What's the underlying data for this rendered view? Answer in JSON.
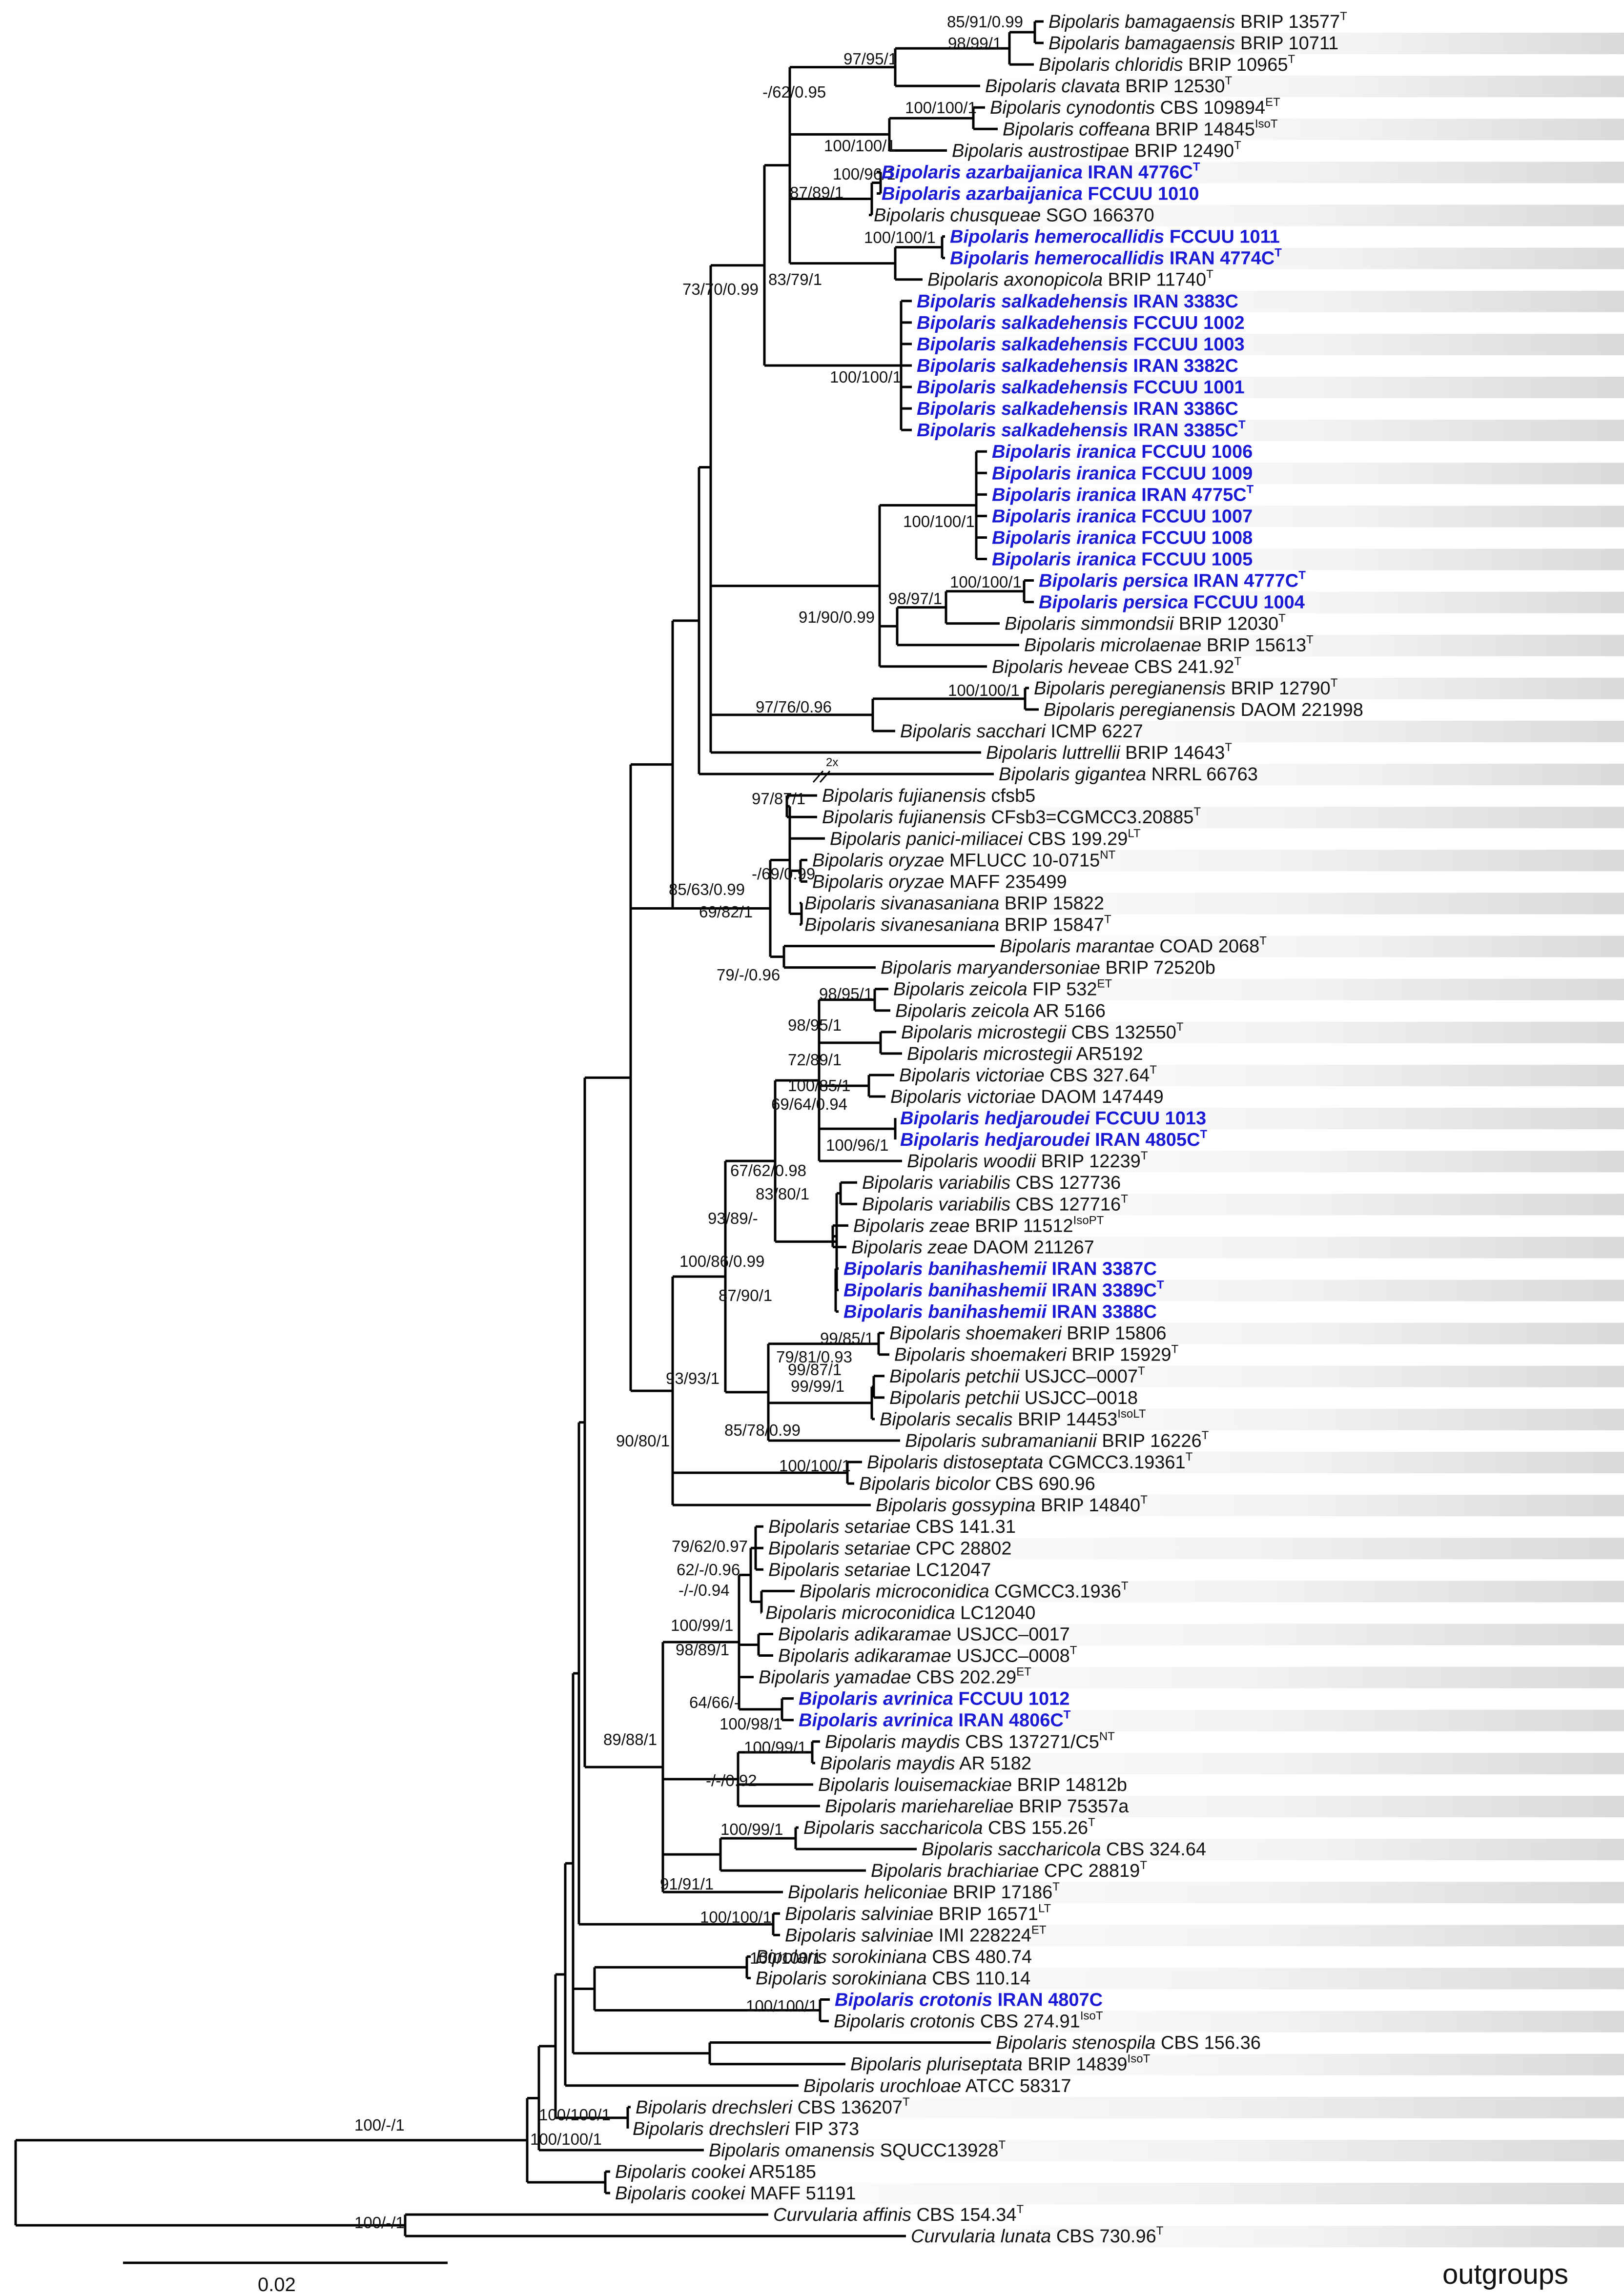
{
  "figure": {
    "outgroups_label": "outgroups",
    "scale_label": "0.02",
    "break_label": "2x"
  },
  "taxa": [
    {
      "sp": "Bipolaris bamagaensis",
      "st": "BRIP 13577",
      "sup": "T",
      "hl": false
    },
    {
      "sp": "Bipolaris bamagaensis",
      "st": "BRIP 10711",
      "sup": "",
      "hl": false
    },
    {
      "sp": "Bipolaris chloridis",
      "st": "BRIP 10965",
      "sup": "T",
      "hl": false
    },
    {
      "sp": "Bipolaris clavata",
      "st": "BRIP 12530",
      "sup": "T",
      "hl": false
    },
    {
      "sp": "Bipolaris cynodontis",
      "st": "CBS 109894",
      "sup": "ET",
      "hl": false
    },
    {
      "sp": "Bipolaris coffeana",
      "st": "BRIP 14845",
      "sup": "IsoT",
      "hl": false
    },
    {
      "sp": "Bipolaris austrostipae",
      "st": "BRIP 12490",
      "sup": "T",
      "hl": false
    },
    {
      "sp": "Bipolaris azarbaijanica",
      "st": "IRAN 4776C",
      "sup": "T",
      "hl": true
    },
    {
      "sp": "Bipolaris azarbaijanica",
      "st": "FCCUU 1010",
      "sup": "",
      "hl": true
    },
    {
      "sp": "Bipolaris chusqueae",
      "st": "SGO 166370",
      "sup": "",
      "hl": false
    },
    {
      "sp": "Bipolaris hemerocallidis",
      "st": "FCCUU 1011",
      "sup": "",
      "hl": true
    },
    {
      "sp": "Bipolaris hemerocallidis",
      "st": "IRAN 4774C",
      "sup": "T",
      "hl": true
    },
    {
      "sp": "Bipolaris axonopicola",
      "st": "BRIP 11740",
      "sup": "T",
      "hl": false
    },
    {
      "sp": "Bipolaris salkadehensis",
      "st": "IRAN 3383C",
      "sup": "",
      "hl": true
    },
    {
      "sp": "Bipolaris salkadehensis",
      "st": "FCCUU 1002",
      "sup": "",
      "hl": true
    },
    {
      "sp": "Bipolaris salkadehensis",
      "st": "FCCUU 1003",
      "sup": "",
      "hl": true
    },
    {
      "sp": "Bipolaris salkadehensis",
      "st": "IRAN 3382C",
      "sup": "",
      "hl": true
    },
    {
      "sp": "Bipolaris salkadehensis",
      "st": "FCCUU 1001",
      "sup": "",
      "hl": true
    },
    {
      "sp": "Bipolaris salkadehensis",
      "st": "IRAN 3386C",
      "sup": "",
      "hl": true
    },
    {
      "sp": "Bipolaris salkadehensis",
      "st": "IRAN 3385C",
      "sup": "T",
      "hl": true
    },
    {
      "sp": "Bipolaris iranica",
      "st": "FCCUU 1006",
      "sup": "",
      "hl": true
    },
    {
      "sp": "Bipolaris iranica",
      "st": "FCCUU 1009",
      "sup": "",
      "hl": true
    },
    {
      "sp": "Bipolaris iranica",
      "st": "IRAN 4775C",
      "sup": "T",
      "hl": true
    },
    {
      "sp": "Bipolaris iranica",
      "st": "FCCUU 1007",
      "sup": "",
      "hl": true
    },
    {
      "sp": "Bipolaris iranica",
      "st": "FCCUU 1008",
      "sup": "",
      "hl": true
    },
    {
      "sp": "Bipolaris iranica",
      "st": "FCCUU 1005",
      "sup": "",
      "hl": true
    },
    {
      "sp": "Bipolaris persica",
      "st": "IRAN 4777C",
      "sup": "T",
      "hl": true
    },
    {
      "sp": "Bipolaris persica",
      "st": "FCCUU 1004",
      "sup": "",
      "hl": true
    },
    {
      "sp": "Bipolaris simmondsii",
      "st": "BRIP 12030",
      "sup": "T",
      "hl": false
    },
    {
      "sp": "Bipolaris microlaenae",
      "st": "BRIP 15613",
      "sup": "T",
      "hl": false
    },
    {
      "sp": "Bipolaris heveae",
      "st": "CBS 241.92",
      "sup": "T",
      "hl": false
    },
    {
      "sp": "Bipolaris peregianensis",
      "st": "BRIP 12790",
      "sup": "T",
      "hl": false
    },
    {
      "sp": "Bipolaris peregianensis",
      "st": "DAOM 221998",
      "sup": "",
      "hl": false
    },
    {
      "sp": "Bipolaris sacchari",
      "st": "ICMP 6227",
      "sup": "",
      "hl": false
    },
    {
      "sp": "Bipolaris luttrellii",
      "st": "BRIP 14643",
      "sup": "T",
      "hl": false
    },
    {
      "sp": "Bipolaris gigantea",
      "st": "NRRL 66763",
      "sup": "",
      "hl": false
    },
    {
      "sp": "Bipolaris fujianensis",
      "st": "cfsb5",
      "sup": "",
      "hl": false
    },
    {
      "sp": "Bipolaris fujianensis",
      "st": "CFsb3=CGMCC3.20885",
      "sup": "T",
      "hl": false
    },
    {
      "sp": "Bipolaris panici-miliacei",
      "st": "CBS 199.29",
      "sup": "LT",
      "hl": false
    },
    {
      "sp": "Bipolaris oryzae",
      "st": "MFLUCC 10-0715",
      "sup": "NT",
      "hl": false
    },
    {
      "sp": "Bipolaris oryzae",
      "st": "MAFF 235499",
      "sup": "",
      "hl": false
    },
    {
      "sp": "Bipolaris sivanasaniana",
      "st": "BRIP 15822",
      "sup": "",
      "hl": false
    },
    {
      "sp": "Bipolaris sivanesaniana",
      "st": "BRIP 15847",
      "sup": "T",
      "hl": false
    },
    {
      "sp": "Bipolaris marantae",
      "st": "COAD 2068",
      "sup": "T",
      "hl": false
    },
    {
      "sp": "Bipolaris maryandersoniae",
      "st": "BRIP 72520b",
      "sup": "",
      "hl": false
    },
    {
      "sp": "Bipolaris zeicola",
      "st": "FIP 532",
      "sup": "ET",
      "hl": false
    },
    {
      "sp": "Bipolaris zeicola",
      "st": "AR 5166",
      "sup": "",
      "hl": false
    },
    {
      "sp": "Bipolaris microstegii",
      "st": "CBS 132550",
      "sup": "T",
      "hl": false
    },
    {
      "sp": "Bipolaris microstegii",
      "st": "AR5192",
      "sup": "",
      "hl": false
    },
    {
      "sp": "Bipolaris victoriae",
      "st": "CBS 327.64",
      "sup": "T",
      "hl": false
    },
    {
      "sp": "Bipolaris victoriae",
      "st": "DAOM 147449",
      "sup": "",
      "hl": false
    },
    {
      "sp": "Bipolaris hedjaroudei",
      "st": "FCCUU 1013",
      "sup": "",
      "hl": true
    },
    {
      "sp": "Bipolaris hedjaroudei",
      "st": "IRAN 4805C",
      "sup": "T",
      "hl": true
    },
    {
      "sp": "Bipolaris woodii",
      "st": "BRIP 12239",
      "sup": "T",
      "hl": false
    },
    {
      "sp": "Bipolaris variabilis",
      "st": "CBS 127736",
      "sup": "",
      "hl": false
    },
    {
      "sp": "Bipolaris variabilis",
      "st": "CBS 127716",
      "sup": "T",
      "hl": false
    },
    {
      "sp": "Bipolaris zeae",
      "st": "BRIP 11512",
      "sup": "IsoPT",
      "hl": false
    },
    {
      "sp": "Bipolaris zeae",
      "st": "DAOM 211267",
      "sup": "",
      "hl": false
    },
    {
      "sp": "Bipolaris banihashemii",
      "st": "IRAN 3387C",
      "sup": "",
      "hl": true
    },
    {
      "sp": "Bipolaris banihashemii",
      "st": "IRAN 3389C",
      "sup": "T",
      "hl": true
    },
    {
      "sp": "Bipolaris banihashemii",
      "st": "IRAN 3388C",
      "sup": "",
      "hl": true
    },
    {
      "sp": "Bipolaris shoemakeri",
      "st": "BRIP 15806",
      "sup": "",
      "hl": false
    },
    {
      "sp": "Bipolaris shoemakeri",
      "st": "BRIP 15929",
      "sup": "T",
      "hl": false
    },
    {
      "sp": "Bipolaris petchii",
      "st": "USJCC–0007",
      "sup": "T",
      "hl": false
    },
    {
      "sp": "Bipolaris petchii",
      "st": "USJCC–0018",
      "sup": "",
      "hl": false
    },
    {
      "sp": "Bipolaris secalis",
      "st": "BRIP 14453",
      "sup": "IsoLT",
      "hl": false
    },
    {
      "sp": "Bipolaris subramanianii",
      "st": "BRIP 16226",
      "sup": "T",
      "hl": false
    },
    {
      "sp": "Bipolaris distoseptata",
      "st": "CGMCC3.19361",
      "sup": "T",
      "hl": false
    },
    {
      "sp": "Bipolaris bicolor",
      "st": "CBS 690.96",
      "sup": "",
      "hl": false
    },
    {
      "sp": "Bipolaris gossypina",
      "st": "BRIP 14840",
      "sup": "T",
      "hl": false
    },
    {
      "sp": "Bipolaris setariae",
      "st": "CBS 141.31",
      "sup": "",
      "hl": false
    },
    {
      "sp": "Bipolaris setariae",
      "st": "CPC 28802",
      "sup": "",
      "hl": false
    },
    {
      "sp": "Bipolaris setariae",
      "st": "LC12047",
      "sup": "",
      "hl": false
    },
    {
      "sp": "Bipolaris microconidica",
      "st": "CGMCC3.1936",
      "sup": "T",
      "hl": false
    },
    {
      "sp": "Bipolaris microconidica",
      "st": "LC12040",
      "sup": "",
      "hl": false
    },
    {
      "sp": "Bipolaris adikaramae",
      "st": "USJCC–0017",
      "sup": "",
      "hl": false
    },
    {
      "sp": "Bipolaris adikaramae",
      "st": "USJCC–0008",
      "sup": "T",
      "hl": false
    },
    {
      "sp": "Bipolaris yamadae",
      "st": "CBS 202.29",
      "sup": "ET",
      "hl": false
    },
    {
      "sp": "Bipolaris avrinica",
      "st": "FCCUU 1012",
      "sup": "",
      "hl": true
    },
    {
      "sp": "Bipolaris avrinica",
      "st": "IRAN 4806C",
      "sup": "T",
      "hl": true
    },
    {
      "sp": "Bipolaris maydis",
      "st": "CBS 137271/C5",
      "sup": "NT",
      "hl": false
    },
    {
      "sp": "Bipolaris maydis",
      "st": "AR 5182",
      "sup": "",
      "hl": false
    },
    {
      "sp": "Bipolaris louisemackiae",
      "st": "BRIP 14812b",
      "sup": "",
      "hl": false
    },
    {
      "sp": "Bipolaris mariehareliae",
      "st": "BRIP 75357a",
      "sup": "",
      "hl": false
    },
    {
      "sp": "Bipolaris saccharicola",
      "st": "CBS 155.26",
      "sup": "T",
      "hl": false
    },
    {
      "sp": "Bipolaris saccharicola",
      "st": "CBS 324.64",
      "sup": "",
      "hl": false
    },
    {
      "sp": "Bipolaris brachiariae",
      "st": "CPC 28819",
      "sup": "T",
      "hl": false
    },
    {
      "sp": "Bipolaris heliconiae",
      "st": "BRIP 17186",
      "sup": "T",
      "hl": false
    },
    {
      "sp": "Bipolaris salviniae",
      "st": "BRIP 16571",
      "sup": "LT",
      "hl": false
    },
    {
      "sp": "Bipolaris salviniae",
      "st": "IMI 228224",
      "sup": "ET",
      "hl": false
    },
    {
      "sp": "Bipolaris sorokiniana",
      "st": "CBS 480.74",
      "sup": "",
      "hl": false
    },
    {
      "sp": "Bipolaris sorokiniana",
      "st": "CBS 110.14",
      "sup": "",
      "hl": false
    },
    {
      "sp": "Bipolaris crotonis",
      "st": "IRAN 4807C",
      "sup": "",
      "hl": true
    },
    {
      "sp": "Bipolaris crotonis",
      "st": "CBS 274.91",
      "sup": "IsoT",
      "hl": false
    },
    {
      "sp": "Bipolaris stenospila",
      "st": "CBS 156.36",
      "sup": "",
      "hl": false
    },
    {
      "sp": "Bipolaris pluriseptata",
      "st": "BRIP 14839",
      "sup": "IsoT",
      "hl": false
    },
    {
      "sp": "Bipolaris urochloae",
      "st": "ATCC 58317",
      "sup": "",
      "hl": false
    },
    {
      "sp": "Bipolaris drechsleri",
      "st": "CBS 136207",
      "sup": "T",
      "hl": false
    },
    {
      "sp": "Bipolaris drechsleri",
      "st": "FIP 373",
      "sup": "",
      "hl": false
    },
    {
      "sp": "Bipolaris omanensis",
      "st": "SQUCC13928",
      "sup": "T",
      "hl": false
    },
    {
      "sp": "Bipolaris cookei",
      "st": "AR5185",
      "sup": "",
      "hl": false
    },
    {
      "sp": "Bipolaris cookei",
      "st": "MAFF 51191",
      "sup": "",
      "hl": false
    },
    {
      "sp": "Curvularia affinis",
      "st": "CBS 154.34",
      "sup": "T",
      "hl": false
    },
    {
      "sp": "Curvularia lunata",
      "st": "CBS 730.96",
      "sup": "T",
      "hl": false
    }
  ],
  "supports": [
    {
      "text": "85/91/0.99"
    },
    {
      "text": "98/99/1"
    },
    {
      "text": "97/95/1"
    },
    {
      "text": "-/62/0.95"
    },
    {
      "text": "100/100/1"
    },
    {
      "text": "100/100/1"
    },
    {
      "text": "100/96/1"
    },
    {
      "text": "87/89/1"
    },
    {
      "text": "100/100/1"
    },
    {
      "text": "83/79/1"
    },
    {
      "text": "73/70/0.99"
    },
    {
      "text": "100/100/1"
    },
    {
      "text": "100/100/1"
    },
    {
      "text": "100/100/1"
    },
    {
      "text": "98/97/1"
    },
    {
      "text": "91/90/0.99"
    },
    {
      "text": "100/100/1"
    },
    {
      "text": "97/76/0.96"
    },
    {
      "text": "97/87/1"
    },
    {
      "text": "-/69/0.99"
    },
    {
      "text": "85/63/0.99"
    },
    {
      "text": "69/82/1"
    },
    {
      "text": "79/-/0.96"
    },
    {
      "text": "98/95/1"
    },
    {
      "text": "98/95/1"
    },
    {
      "text": "72/89/1"
    },
    {
      "text": "100/85/1"
    },
    {
      "text": "69/64/0.94"
    },
    {
      "text": "100/96/1"
    },
    {
      "text": "67/62/0.98"
    },
    {
      "text": "83/80/1"
    },
    {
      "text": "93/89/-"
    },
    {
      "text": "100/86/0.99"
    },
    {
      "text": "87/90/1"
    },
    {
      "text": "93/93/1"
    },
    {
      "text": "99/85/1"
    },
    {
      "text": "79/81/0.93"
    },
    {
      "text": "99/87/1"
    },
    {
      "text": "99/99/1"
    },
    {
      "text": "85/78/0.99"
    },
    {
      "text": "100/100/1"
    },
    {
      "text": "90/80/1"
    },
    {
      "text": "79/62/0.97"
    },
    {
      "text": "62/-/0.96"
    },
    {
      "text": "-/-/0.94"
    },
    {
      "text": "100/99/1"
    },
    {
      "text": "98/89/1"
    },
    {
      "text": "64/66/-"
    },
    {
      "text": "100/98/1"
    },
    {
      "text": "100/99/1"
    },
    {
      "text": "-/-/0.92"
    },
    {
      "text": "100/99/1"
    },
    {
      "text": "89/88/1"
    },
    {
      "text": "91/91/1"
    },
    {
      "text": "100/100/1"
    },
    {
      "text": "100/100/1"
    },
    {
      "text": "100/100/1"
    },
    {
      "text": "100/100/1"
    },
    {
      "text": "100/-/1"
    },
    {
      "text": "100/100/1"
    },
    {
      "text": "100/-/1"
    }
  ]
}
